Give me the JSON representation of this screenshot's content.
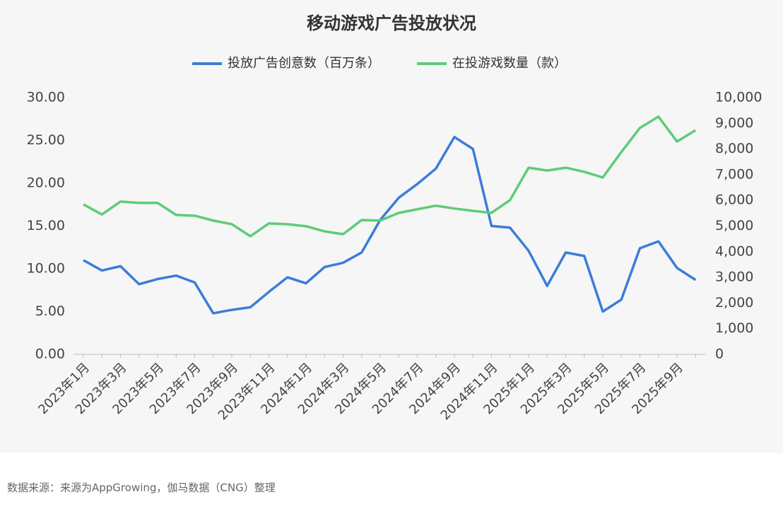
{
  "chart_data": {
    "type": "line",
    "title": "移动游戏广告投放状况",
    "categories": [
      "2023年1月",
      null,
      "2023年3月",
      null,
      "2023年5月",
      null,
      "2023年7月",
      null,
      "2023年9月",
      null,
      "2023年11月",
      null,
      "2024年1月",
      null,
      "2024年3月",
      null,
      "2024年5月",
      null,
      "2024年7月",
      null,
      "2024年9月",
      null,
      "2024年11月",
      null,
      "2025年1月",
      null,
      "2025年3月",
      null,
      "2025年5月",
      null,
      "2025年7月",
      null,
      "2025年9月",
      null
    ],
    "series": [
      {
        "name": "投放广告创意数（百万条）",
        "color": "#3b7dd8",
        "values": [
          11.0,
          9.8,
          10.3,
          8.2,
          8.8,
          9.2,
          8.4,
          4.8,
          5.2,
          5.5,
          7.3,
          9.0,
          8.3,
          10.2,
          10.7,
          11.9,
          15.7,
          18.3,
          19.9,
          21.7,
          25.4,
          24.0,
          15.0,
          14.8,
          12.1,
          8.0,
          11.9,
          11.5,
          5.0,
          6.4,
          12.4,
          13.2,
          10.1,
          8.7
        ]
      },
      {
        "name": "在投游戏数量（款）",
        "color": "#5fcb79",
        "axis": "y2",
        "values": [
          5840,
          5450,
          5950,
          5900,
          5900,
          5430,
          5400,
          5210,
          5070,
          4600,
          5100,
          5070,
          4990,
          4790,
          4680,
          5230,
          5210,
          5510,
          5650,
          5790,
          5680,
          5590,
          5510,
          6010,
          7270,
          7160,
          7270,
          7110,
          6890,
          7880,
          8820,
          9260,
          8290,
          8730
        ]
      }
    ],
    "ylim": [
      0,
      30
    ],
    "yticks": [
      {
        "value": 0,
        "label": "0.00"
      },
      {
        "value": 5,
        "label": "5.00"
      },
      {
        "value": 10,
        "label": "10.00"
      },
      {
        "value": 15,
        "label": "15.00"
      },
      {
        "value": 20,
        "label": "20.00"
      },
      {
        "value": 25,
        "label": "25.00"
      },
      {
        "value": 30,
        "label": "30.00"
      }
    ],
    "y2lim": [
      0,
      10000
    ],
    "y2ticks": [
      0,
      {
        "value": 1000,
        "label": "1,000"
      },
      {
        "value": 2000,
        "label": "2,000"
      },
      {
        "value": 3000,
        "label": "3,000"
      },
      {
        "value": 4000,
        "label": "4,000"
      },
      {
        "value": 5000,
        "label": "5,000"
      },
      {
        "value": 6000,
        "label": "6,000"
      },
      {
        "value": 7000,
        "label": "7,000"
      },
      {
        "value": 8000,
        "label": "8,000"
      },
      {
        "value": 9000,
        "label": "9,000"
      },
      {
        "value": 10000,
        "label": "10,000"
      }
    ],
    "grid": false,
    "legend": "top",
    "source": "数据来源：来源为AppGrowing，伽马数据（CNG）整理"
  }
}
